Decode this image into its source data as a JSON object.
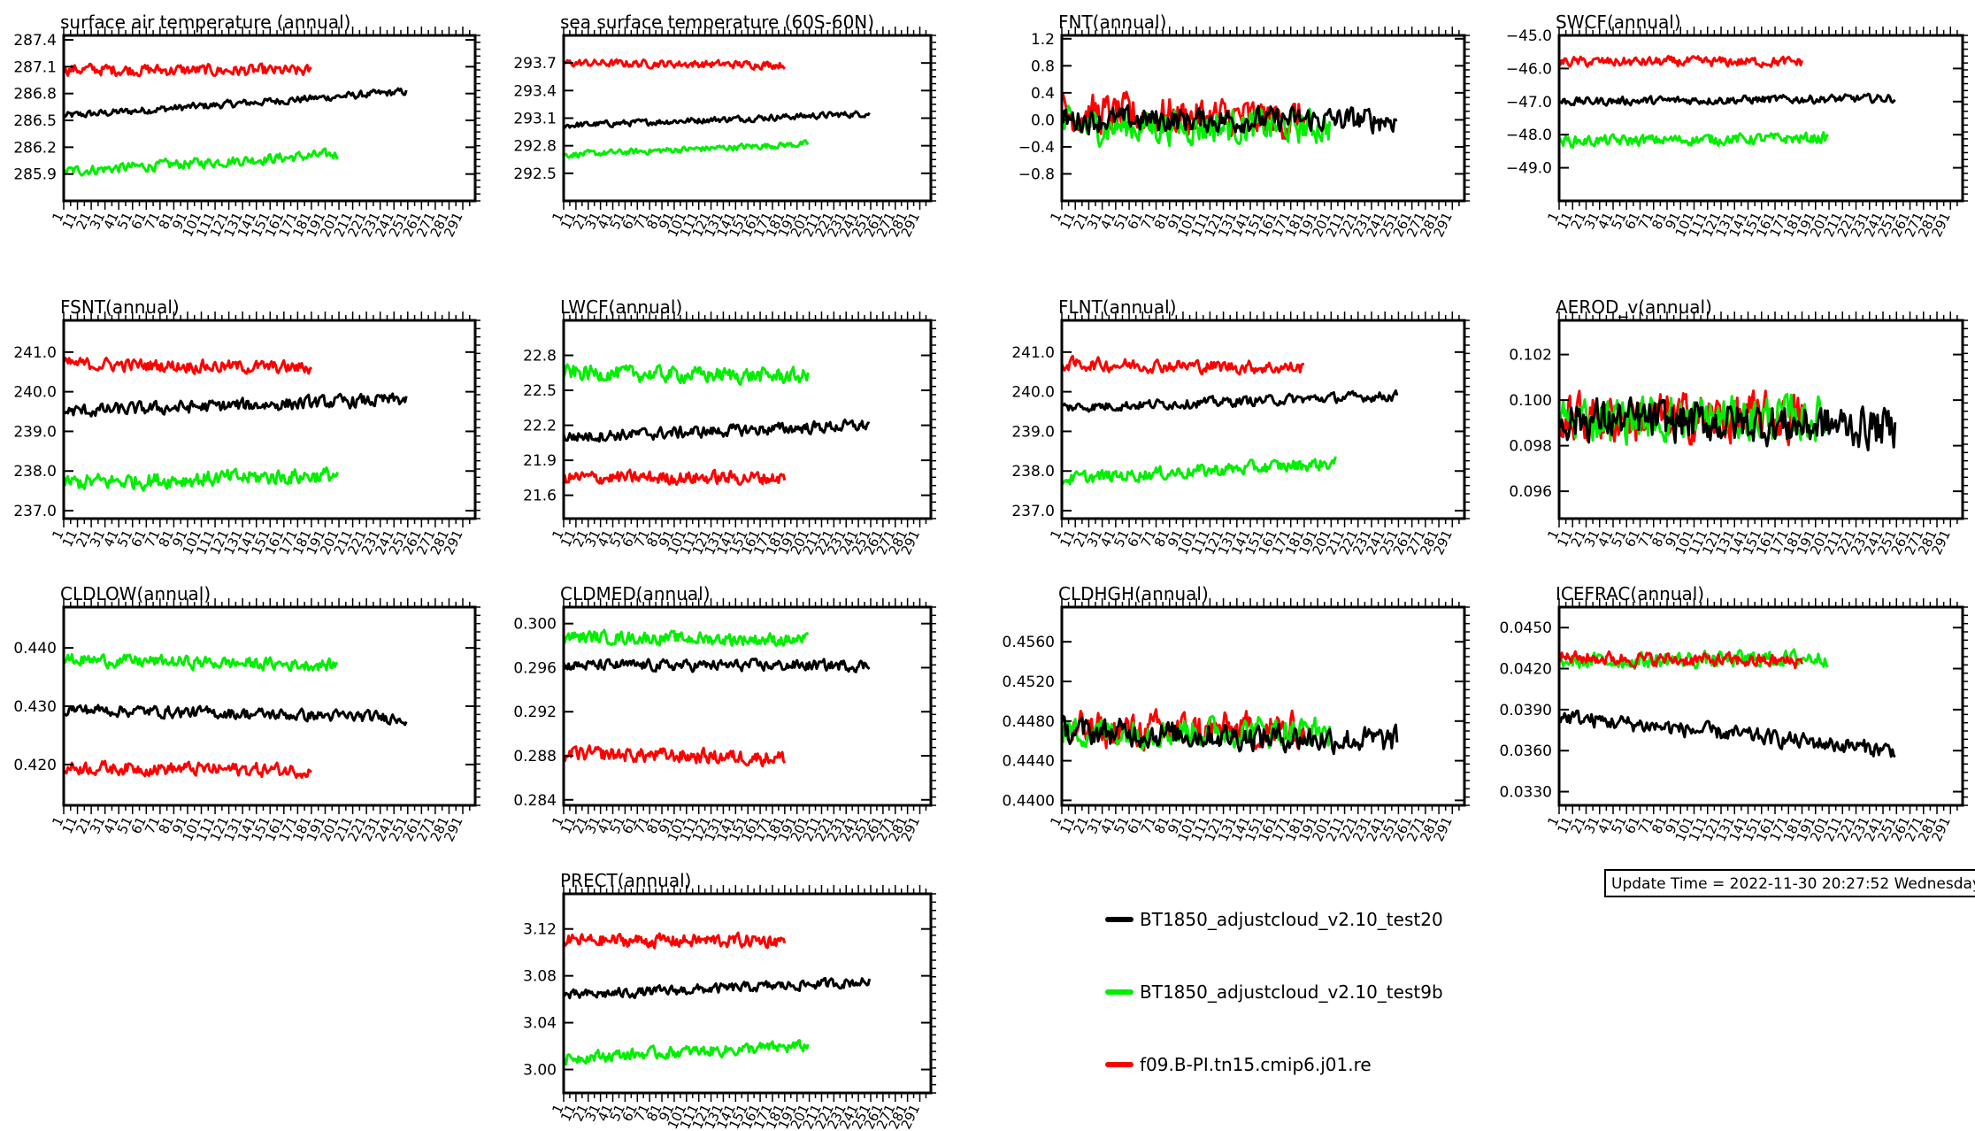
{
  "update_time": "Update Time = 2022-11-30 20:27:52 Wednesday",
  "x_tick_labels": [
    "1",
    "11",
    "21",
    "31",
    "41",
    "51",
    "61",
    "71",
    "81",
    "91",
    "101",
    "111",
    "121",
    "131",
    "141",
    "151",
    "161",
    "171",
    "181",
    "191",
    "201",
    "211",
    "221",
    "231",
    "241",
    "251",
    "261",
    "271",
    "281",
    "291"
  ],
  "x_range": [
    1,
    300
  ],
  "legend": [
    {
      "label": "BT1850_adjustcloud_v2.10_test20",
      "color": "#000000"
    },
    {
      "label": "BT1850_adjustcloud_v2.10_test9b",
      "color": "#00ee00"
    },
    {
      "label": "f09.B-PI.tn15.cmip6.j01.re",
      "color": "#ff0000"
    }
  ],
  "chart_data": [
    {
      "type": "line",
      "title": "surface air temperature (annual)",
      "yticks": [
        "287.4",
        "287.1",
        "286.8",
        "286.5",
        "286.2",
        "285.9"
      ],
      "ylim": [
        285.6,
        287.45
      ],
      "series": [
        {
          "color": "#000000",
          "years": 250,
          "start": 286.55,
          "end": 286.82,
          "noise": 0.05
        },
        {
          "color": "#00ee00",
          "years": 200,
          "start": 285.93,
          "end": 286.12,
          "noise": 0.07
        },
        {
          "color": "#ff0000",
          "years": 181,
          "start": 287.07,
          "end": 287.05,
          "noise": 0.08
        }
      ]
    },
    {
      "type": "line",
      "title": "sea surface temperature (60S-60N)",
      "yticks": [
        "293.7",
        "293.4",
        "293.1",
        "292.8",
        "292.5"
      ],
      "ylim": [
        292.2,
        294.0
      ],
      "series": [
        {
          "color": "#000000",
          "years": 250,
          "start": 293.02,
          "end": 293.15,
          "noise": 0.04
        },
        {
          "color": "#00ee00",
          "years": 200,
          "start": 292.7,
          "end": 292.82,
          "noise": 0.04
        },
        {
          "color": "#ff0000",
          "years": 181,
          "start": 293.7,
          "end": 293.68,
          "noise": 0.05
        }
      ]
    },
    {
      "type": "line",
      "title": "FNT(annual)",
      "yticks": [
        "1.2",
        "0.8",
        "0.4",
        "0.0",
        "-0.4",
        "-0.8"
      ],
      "ylim": [
        -1.2,
        1.25
      ],
      "series": [
        {
          "color": "#ff0000",
          "years": 181,
          "start": 0.1,
          "end": 0.0,
          "noise": 0.35
        },
        {
          "color": "#00ee00",
          "years": 200,
          "start": -0.1,
          "end": -0.1,
          "noise": 0.3
        },
        {
          "color": "#000000",
          "years": 250,
          "start": 0.0,
          "end": 0.0,
          "noise": 0.22
        }
      ]
    },
    {
      "type": "line",
      "title": "SWCF(annual)",
      "yticks": [
        "-45.0",
        "-46.0",
        "-47.0",
        "-48.0",
        "-49.0"
      ],
      "ylim": [
        -50.0,
        -45.0
      ],
      "series": [
        {
          "color": "#000000",
          "years": 250,
          "start": -47.0,
          "end": -46.9,
          "noise": 0.15
        },
        {
          "color": "#00ee00",
          "years": 200,
          "start": -48.2,
          "end": -48.1,
          "noise": 0.2
        },
        {
          "color": "#ff0000",
          "years": 181,
          "start": -45.8,
          "end": -45.8,
          "noise": 0.18
        }
      ]
    },
    {
      "type": "line",
      "title": "FSNT(annual)",
      "yticks": [
        "241.0",
        "240.0",
        "239.0",
        "238.0",
        "237.0"
      ],
      "ylim": [
        236.8,
        241.8
      ],
      "series": [
        {
          "color": "#000000",
          "years": 250,
          "start": 239.5,
          "end": 239.8,
          "noise": 0.2
        },
        {
          "color": "#00ee00",
          "years": 200,
          "start": 237.7,
          "end": 237.9,
          "noise": 0.25
        },
        {
          "color": "#ff0000",
          "years": 181,
          "start": 240.7,
          "end": 240.6,
          "noise": 0.2
        }
      ]
    },
    {
      "type": "line",
      "title": "LWCF(annual)",
      "yticks": [
        "22.8",
        "22.5",
        "22.2",
        "21.9",
        "21.6"
      ],
      "ylim": [
        21.4,
        23.1
      ],
      "series": [
        {
          "color": "#000000",
          "years": 250,
          "start": 22.1,
          "end": 22.2,
          "noise": 0.06
        },
        {
          "color": "#00ee00",
          "years": 200,
          "start": 22.65,
          "end": 22.62,
          "noise": 0.08
        },
        {
          "color": "#ff0000",
          "years": 181,
          "start": 21.75,
          "end": 21.75,
          "noise": 0.07
        }
      ]
    },
    {
      "type": "line",
      "title": "FLNT(annual)",
      "yticks": [
        "241.0",
        "240.0",
        "239.0",
        "238.0",
        "237.0"
      ],
      "ylim": [
        236.8,
        241.8
      ],
      "series": [
        {
          "color": "#000000",
          "years": 250,
          "start": 239.6,
          "end": 239.9,
          "noise": 0.15
        },
        {
          "color": "#00ee00",
          "years": 205,
          "start": 237.8,
          "end": 238.2,
          "noise": 0.2
        },
        {
          "color": "#ff0000",
          "years": 181,
          "start": 240.7,
          "end": 240.6,
          "noise": 0.2
        }
      ]
    },
    {
      "type": "line",
      "title": "AEROD_v(annual)",
      "yticks": [
        "0.102",
        "0.100",
        "0.098",
        "0.096"
      ],
      "ylim": [
        0.0948,
        0.1035
      ],
      "series": [
        {
          "color": "#ff0000",
          "years": 181,
          "start": 0.0992,
          "end": 0.0992,
          "noise": 0.0013
        },
        {
          "color": "#00ee00",
          "years": 200,
          "start": 0.0992,
          "end": 0.0992,
          "noise": 0.0012
        },
        {
          "color": "#000000",
          "years": 250,
          "start": 0.0992,
          "end": 0.0988,
          "noise": 0.0011
        }
      ]
    },
    {
      "type": "line",
      "title": "CLDLOW(annual)",
      "yticks": [
        "0.440",
        "0.430",
        "0.420"
      ],
      "ylim": [
        0.413,
        0.447
      ],
      "series": [
        {
          "color": "#000000",
          "years": 250,
          "start": 0.4295,
          "end": 0.428,
          "noise": 0.0012
        },
        {
          "color": "#00ee00",
          "years": 200,
          "start": 0.438,
          "end": 0.437,
          "noise": 0.0013
        },
        {
          "color": "#ff0000",
          "years": 181,
          "start": 0.4195,
          "end": 0.419,
          "noise": 0.0014
        }
      ]
    },
    {
      "type": "line",
      "title": "CLDMED(annual)",
      "yticks": [
        "0.300",
        "0.296",
        "0.292",
        "0.288",
        "0.284"
      ],
      "ylim": [
        0.2835,
        0.3015
      ],
      "series": [
        {
          "color": "#000000",
          "years": 250,
          "start": 0.2962,
          "end": 0.2962,
          "noise": 0.0006
        },
        {
          "color": "#00ee00",
          "years": 200,
          "start": 0.2988,
          "end": 0.2985,
          "noise": 0.0007
        },
        {
          "color": "#ff0000",
          "years": 181,
          "start": 0.2882,
          "end": 0.2878,
          "noise": 0.0008
        }
      ]
    },
    {
      "type": "line",
      "title": "CLDHGH(annual)",
      "yticks": [
        "0.4560",
        "0.4520",
        "0.4480",
        "0.4440",
        "0.4400"
      ],
      "ylim": [
        0.4395,
        0.4595
      ],
      "series": [
        {
          "color": "#ff0000",
          "years": 181,
          "start": 0.447,
          "end": 0.447,
          "noise": 0.0022
        },
        {
          "color": "#00ee00",
          "years": 200,
          "start": 0.447,
          "end": 0.447,
          "noise": 0.0018
        },
        {
          "color": "#000000",
          "years": 250,
          "start": 0.447,
          "end": 0.446,
          "noise": 0.0016
        }
      ]
    },
    {
      "type": "line",
      "title": "ICEFRAC(annual)",
      "yticks": [
        "0.0450",
        "0.0420",
        "0.0390",
        "0.0360",
        "0.0330"
      ],
      "ylim": [
        0.032,
        0.0465
      ],
      "series": [
        {
          "color": "#00ee00",
          "years": 200,
          "start": 0.0425,
          "end": 0.0428,
          "noise": 0.0007
        },
        {
          "color": "#ff0000",
          "years": 181,
          "start": 0.0428,
          "end": 0.0425,
          "noise": 0.0006
        },
        {
          "color": "#000000",
          "years": 250,
          "start": 0.0385,
          "end": 0.036,
          "noise": 0.0007
        }
      ]
    },
    {
      "type": "line",
      "title": "PRECT(annual)",
      "yticks": [
        "3.12",
        "3.08",
        "3.04",
        "3.00"
      ],
      "ylim": [
        2.98,
        3.15
      ],
      "series": [
        {
          "color": "#000000",
          "years": 250,
          "start": 3.063,
          "end": 3.075,
          "noise": 0.005
        },
        {
          "color": "#00ee00",
          "years": 200,
          "start": 3.01,
          "end": 3.02,
          "noise": 0.006
        },
        {
          "color": "#ff0000",
          "years": 181,
          "start": 3.11,
          "end": 3.11,
          "noise": 0.007
        }
      ]
    }
  ]
}
